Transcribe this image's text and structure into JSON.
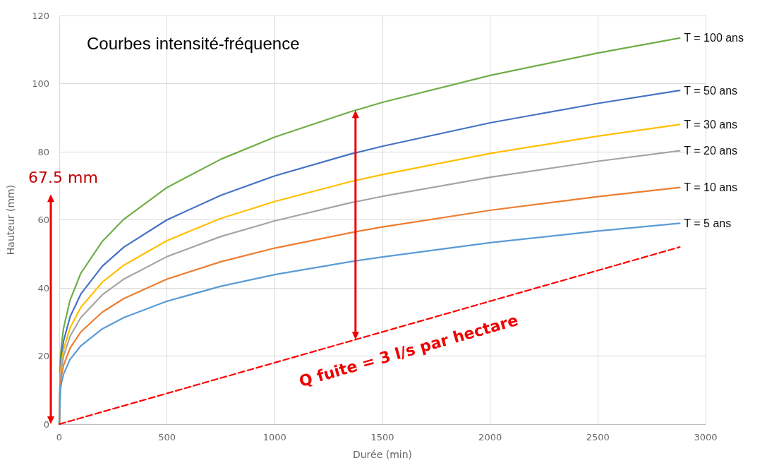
{
  "chart_data": {
    "type": "line",
    "title": "Courbes intensité-fréquence",
    "xlabel": "Durée (min)",
    "ylabel": "Hauteur (mm)",
    "x": [
      0,
      5,
      10,
      20,
      50,
      100,
      200,
      300,
      500,
      750,
      1000,
      1350,
      1500,
      2000,
      2500,
      2880
    ],
    "series": [
      {
        "name": "T = 100 ans",
        "color": "#70ad47",
        "values": [
          0,
          19.1,
          23.2,
          28.2,
          36.4,
          44.3,
          53.7,
          60.2,
          69.5,
          77.8,
          84.3,
          91.7,
          94.5,
          102.4,
          109.0,
          113.4
        ]
      },
      {
        "name": "T = 50 ans",
        "color": "#4472c4",
        "values": [
          0,
          16.5,
          20.1,
          24.4,
          31.5,
          38.2,
          46.4,
          52.0,
          60.0,
          67.2,
          72.9,
          79.3,
          81.6,
          88.5,
          94.2,
          98.0
        ]
      },
      {
        "name": "T = 30 ans",
        "color": "#ffc000",
        "values": [
          0,
          14.8,
          18.0,
          21.9,
          28.3,
          34.3,
          41.7,
          46.7,
          53.9,
          60.4,
          65.4,
          71.2,
          73.3,
          79.5,
          84.6,
          88.0
        ]
      },
      {
        "name": "T = 20 ans",
        "color": "#a5a5a5",
        "values": [
          0,
          13.5,
          16.4,
          20.0,
          25.8,
          31.3,
          38.0,
          42.6,
          49.2,
          55.1,
          59.7,
          65.0,
          66.9,
          72.5,
          77.2,
          80.3
        ]
      },
      {
        "name": "T = 10 ans",
        "color": "#ed7d31",
        "values": [
          0,
          11.7,
          14.2,
          17.3,
          22.3,
          27.1,
          32.9,
          36.9,
          42.6,
          47.7,
          51.7,
          56.2,
          57.9,
          62.8,
          66.8,
          69.5
        ]
      },
      {
        "name": "T = 5 ans",
        "color": "#5b9bd5",
        "values": [
          0,
          10.0,
          12.1,
          14.7,
          19.0,
          23.0,
          28.0,
          31.3,
          36.1,
          40.5,
          43.9,
          47.7,
          49.1,
          53.3,
          56.7,
          59.0
        ]
      },
      {
        "color": "#ff0000",
        "line_style": "dashed",
        "x": [
          0,
          2880
        ],
        "values": [
          0,
          52
        ]
      }
    ],
    "annotations": [
      "67.5 mm",
      "Q fuite = 3 l/s par hectare"
    ],
    "xlim": [
      0,
      3000
    ],
    "xticks": [
      0,
      500,
      1000,
      1500,
      2000,
      2500,
      3000
    ],
    "ylim": [
      0,
      120
    ],
    "yticks": [
      0,
      20,
      40,
      60,
      80,
      100,
      120
    ],
    "grid": true,
    "marker": "none",
    "line_style": "solid"
  }
}
